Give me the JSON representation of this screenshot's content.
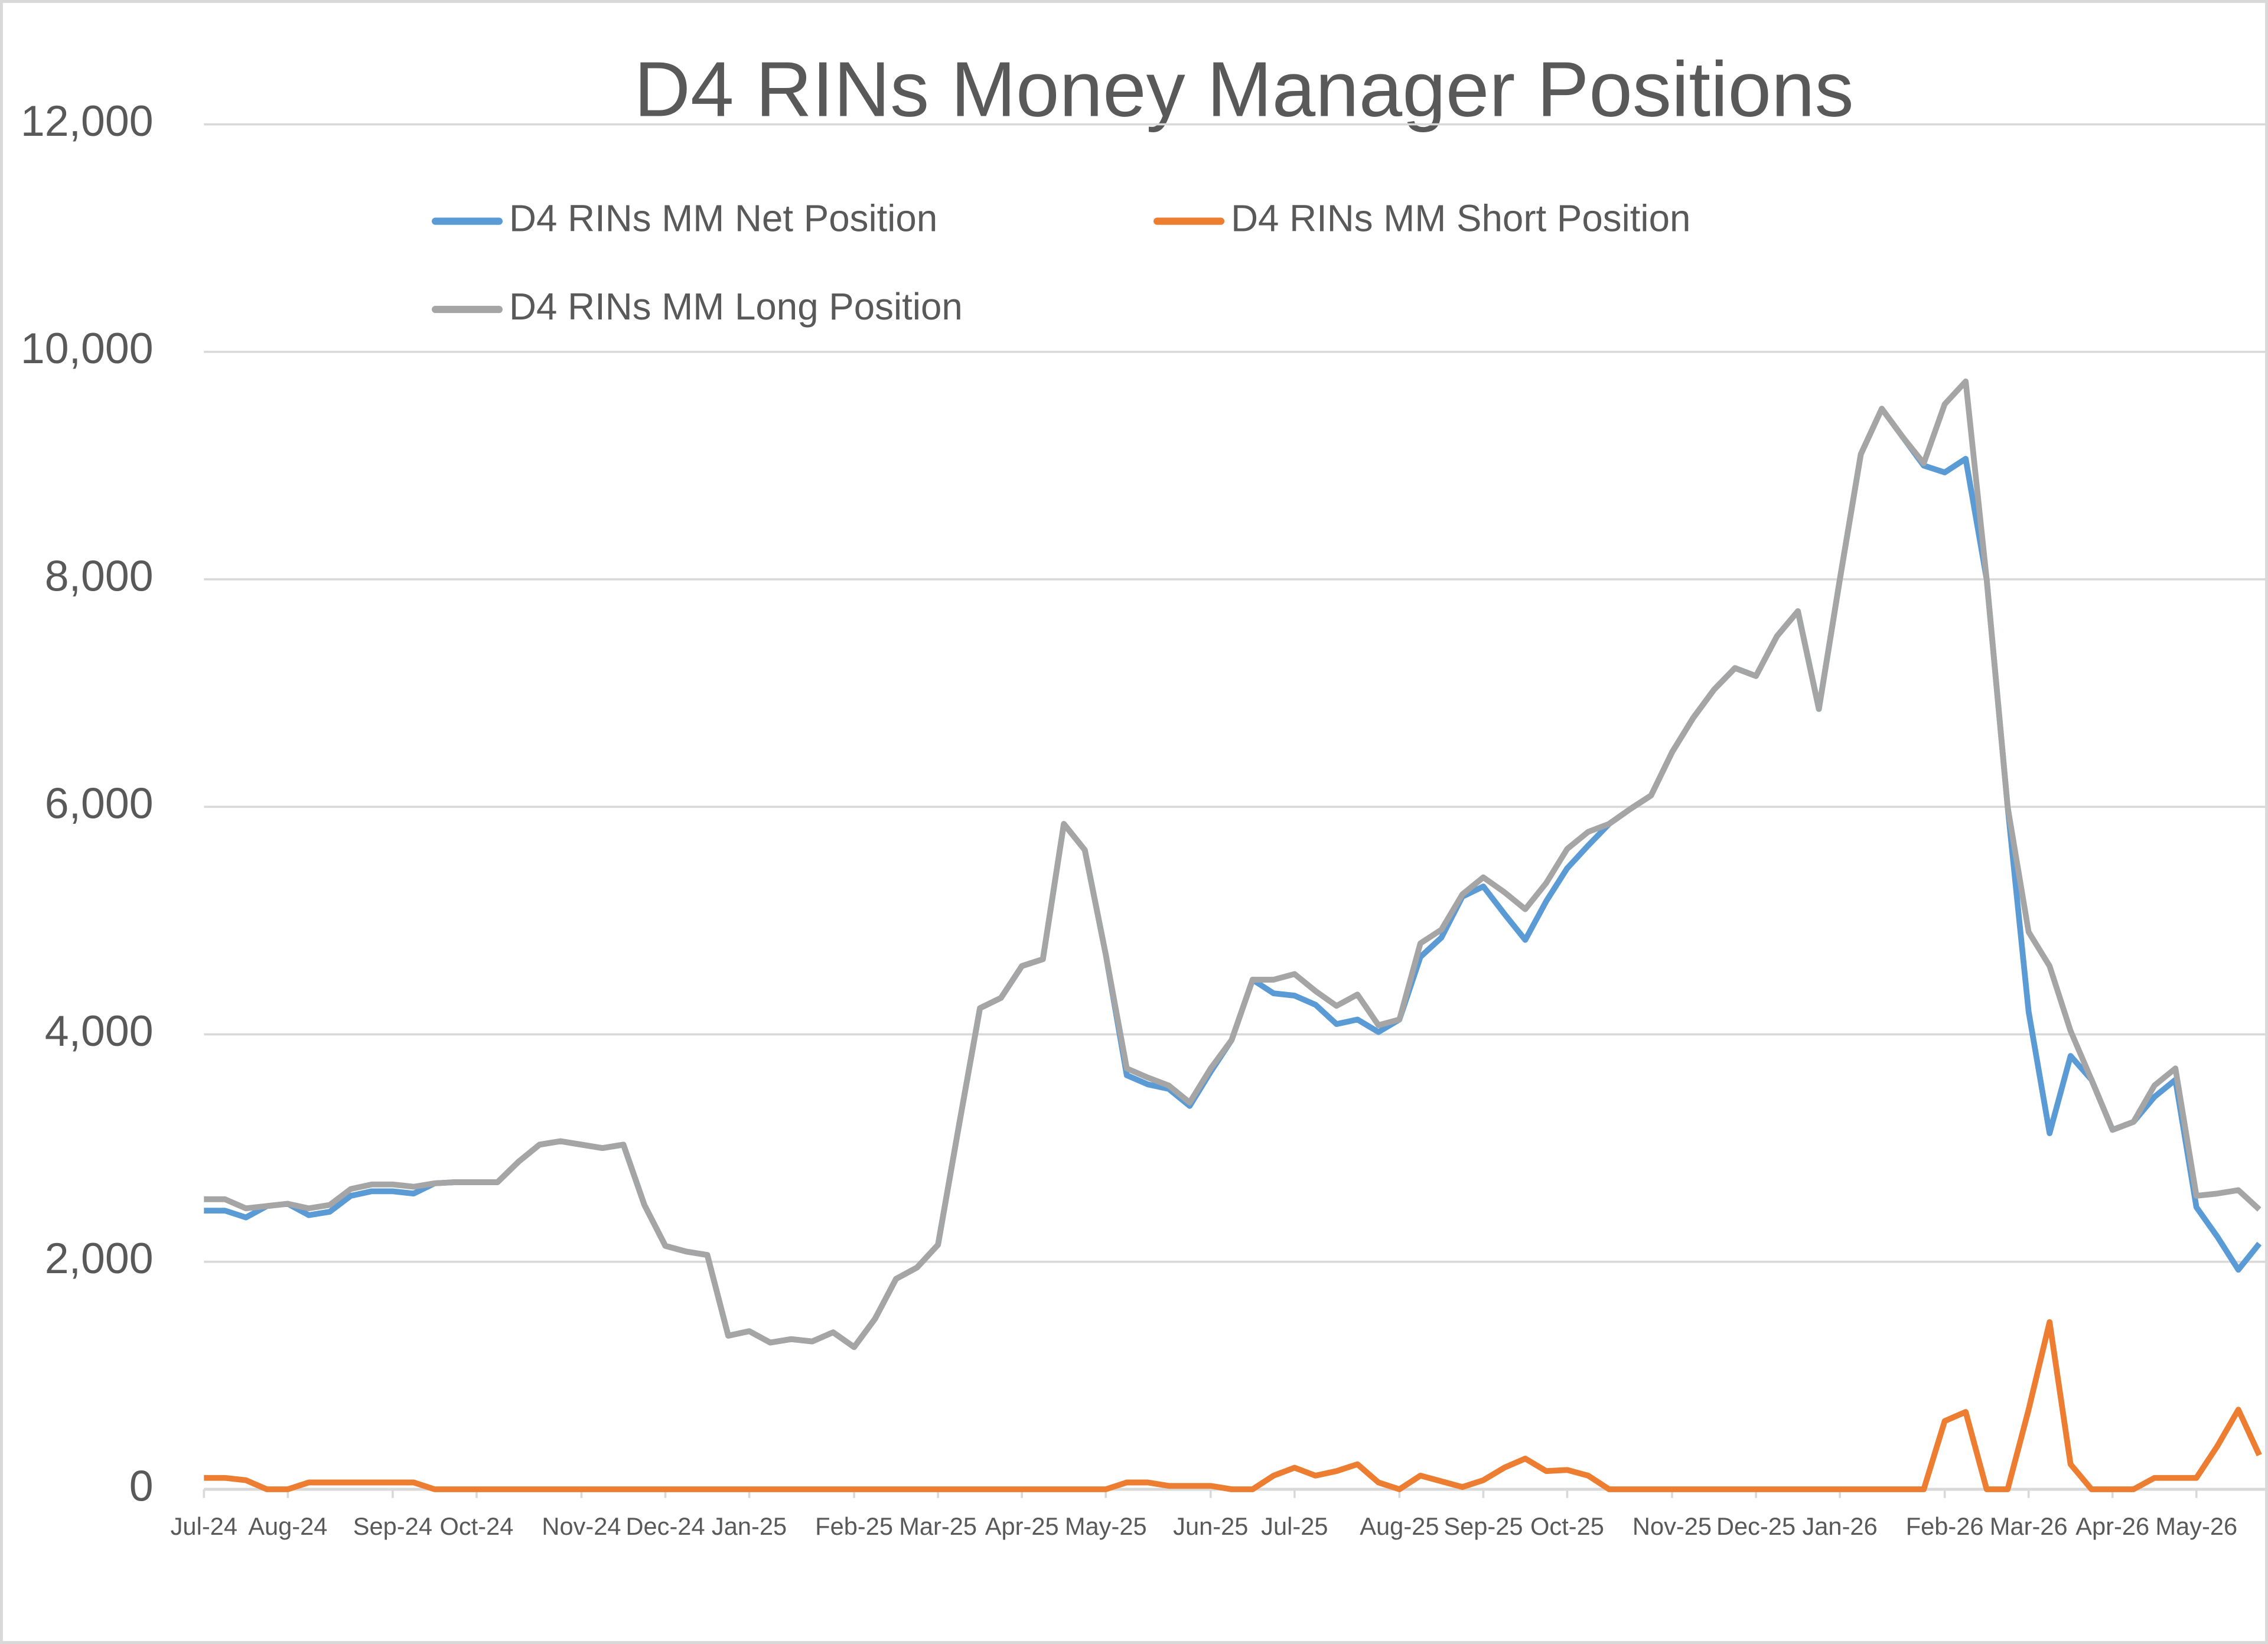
{
  "chart_data": {
    "type": "line",
    "title": "D4 RINs Money Manager Positions",
    "categories": [
      "Jul-24",
      null,
      null,
      null,
      "Aug-24",
      null,
      null,
      null,
      null,
      "Sep-24",
      null,
      null,
      null,
      "Oct-24",
      null,
      null,
      null,
      null,
      "Nov-24",
      null,
      null,
      null,
      "Dec-24",
      null,
      null,
      null,
      "Jan-25",
      null,
      null,
      null,
      null,
      "Feb-25",
      null,
      null,
      null,
      "Mar-25",
      null,
      null,
      null,
      "Apr-25",
      null,
      null,
      null,
      "May-25",
      null,
      null,
      null,
      null,
      "Jun-25",
      null,
      null,
      null,
      "Jul-25",
      null,
      null,
      null,
      null,
      "Aug-25",
      null,
      null,
      null,
      "Sep-25",
      null,
      null,
      null,
      "Oct-25",
      null,
      null,
      null,
      null,
      "Nov-25",
      null,
      null,
      null,
      "Dec-25",
      null,
      null,
      null,
      "Jan-26",
      null,
      null,
      null,
      null,
      "Feb-26",
      null,
      null,
      null,
      "Mar-26",
      null,
      null,
      null,
      "Apr-26",
      null,
      null,
      null,
      "May-26",
      null,
      null,
      null
    ],
    "series": [
      {
        "name": "D4 RINs MM Net Position",
        "color": "#5b9bd5",
        "values": [
          2450,
          2450,
          2390,
          2490,
          2510,
          2410,
          2440,
          2580,
          2620,
          2620,
          2600,
          2690,
          2700,
          2700,
          2700,
          2880,
          3030,
          3060,
          3030,
          3000,
          3030,
          2500,
          2140,
          2090,
          2060,
          1350,
          1390,
          1290,
          1320,
          1300,
          1380,
          1250,
          1500,
          1850,
          1950,
          2150,
          3200,
          4230,
          4320,
          4600,
          4660,
          5850,
          5620,
          4700,
          3640,
          3560,
          3520,
          3370,
          3670,
          3950,
          4480,
          4360,
          4340,
          4260,
          4090,
          4130,
          4020,
          4130,
          4680,
          4850,
          5210,
          5300,
          5060,
          4830,
          5170,
          5460,
          5660,
          5850,
          5980,
          6100,
          6480,
          6780,
          7030,
          7220,
          7150,
          7500,
          7720,
          6860,
          8000,
          9100,
          9500,
          9250,
          9000,
          8940,
          9060,
          8000,
          6000,
          4200,
          3130,
          3810,
          3600,
          3160,
          3230,
          3450,
          3600,
          2480,
          2220,
          1930,
          2160
        ]
      },
      {
        "name": "D4 RINs MM Short Position",
        "color": "#ed7d31",
        "values": [
          100,
          100,
          80,
          0,
          0,
          60,
          60,
          60,
          60,
          60,
          60,
          0,
          0,
          0,
          0,
          0,
          0,
          0,
          0,
          0,
          0,
          0,
          0,
          0,
          0,
          0,
          0,
          0,
          0,
          0,
          0,
          0,
          0,
          0,
          0,
          0,
          0,
          0,
          0,
          0,
          0,
          0,
          0,
          0,
          60,
          60,
          30,
          30,
          30,
          0,
          0,
          120,
          190,
          120,
          160,
          220,
          60,
          0,
          120,
          70,
          20,
          80,
          190,
          270,
          160,
          170,
          120,
          0,
          0,
          0,
          0,
          0,
          0,
          0,
          0,
          0,
          0,
          0,
          0,
          0,
          0,
          0,
          0,
          600,
          680,
          0,
          0,
          700,
          1470,
          220,
          0,
          0,
          0,
          100,
          100,
          100,
          380,
          700,
          300
        ]
      },
      {
        "name": "D4 RINs MM Long Position",
        "color": "#a5a5a5",
        "values": [
          2550,
          2550,
          2470,
          2490,
          2510,
          2470,
          2500,
          2640,
          2680,
          2680,
          2660,
          2690,
          2700,
          2700,
          2700,
          2880,
          3030,
          3060,
          3030,
          3000,
          3030,
          2500,
          2140,
          2090,
          2060,
          1350,
          1390,
          1290,
          1320,
          1300,
          1380,
          1250,
          1500,
          1850,
          1950,
          2150,
          3200,
          4230,
          4320,
          4600,
          4660,
          5850,
          5620,
          4700,
          3700,
          3620,
          3550,
          3400,
          3700,
          3950,
          4480,
          4480,
          4530,
          4380,
          4250,
          4350,
          4080,
          4130,
          4800,
          4920,
          5230,
          5380,
          5250,
          5100,
          5330,
          5630,
          5780,
          5850,
          5980,
          6100,
          6480,
          6780,
          7030,
          7220,
          7150,
          7500,
          7720,
          6860,
          8000,
          9100,
          9500,
          9250,
          9020,
          9540,
          9740,
          8000,
          6000,
          4900,
          4600,
          4030,
          3600,
          3160,
          3230,
          3550,
          3700,
          2580,
          2600,
          2630,
          2460
        ]
      }
    ],
    "ylim": [
      0,
      12000
    ],
    "yticks": [
      {
        "value": 0,
        "label": "0"
      },
      {
        "value": 2000,
        "label": "2,000"
      },
      {
        "value": 4000,
        "label": "4,000"
      },
      {
        "value": 6000,
        "label": "6,000"
      },
      {
        "value": 8000,
        "label": "8,000"
      },
      {
        "value": 10000,
        "label": "10,000"
      },
      {
        "value": 12000,
        "label": "12,000"
      }
    ],
    "grid": true
  }
}
